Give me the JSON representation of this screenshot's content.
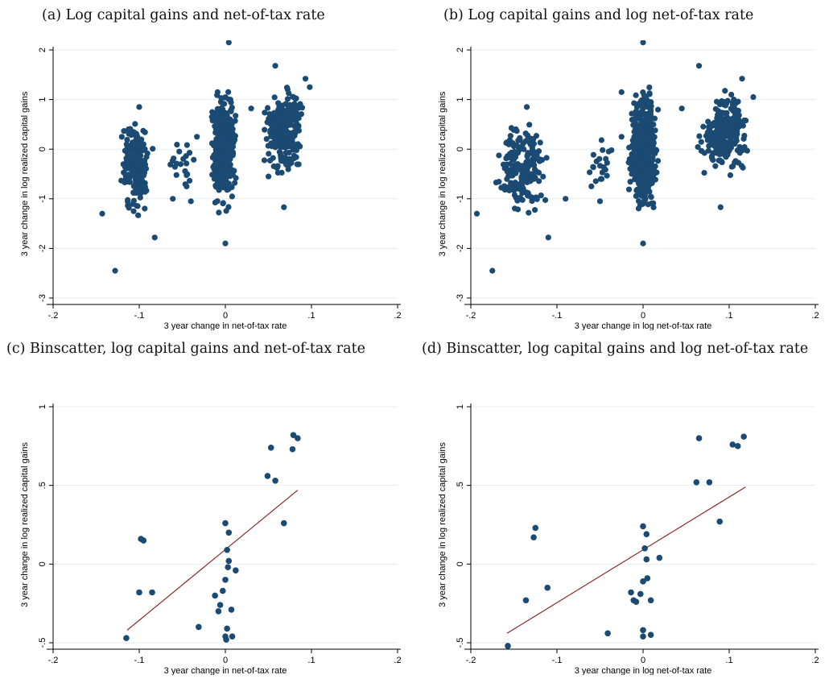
{
  "captions": {
    "a": "(a) Log capital gains and net-of-tax rate",
    "b": "(b) Log capital gains and log net-of-tax rate",
    "c": "(c) Binscatter, log capital gains and net-of-tax rate",
    "d": "(d) Binscatter, log capital gains and log net-of-tax rate"
  },
  "colors": {
    "marker": "#1b4a73",
    "fit_line": "#8b2a2a",
    "grid": "#e6eaee",
    "axis": "#000000"
  },
  "chart_data": [
    {
      "id": "a",
      "type": "scatter",
      "xlabel": "3 year change in net-of-tax rate",
      "ylabel": "3 year change in log realized capital gains",
      "xlim": [
        -0.2,
        0.2
      ],
      "ylim": [
        -3,
        2
      ],
      "xticks": [
        -0.2,
        -0.1,
        0,
        0.1,
        0.2
      ],
      "xtick_labels": [
        "-.2",
        "-.1",
        "0",
        ".1",
        ".2"
      ],
      "yticks": [
        -3,
        -2,
        -1,
        0,
        1,
        2
      ],
      "ytick_labels": [
        "-3",
        "-2",
        "-1",
        "0",
        "1",
        "2"
      ],
      "grid": true,
      "clusters": [
        {
          "xmin": -0.125,
          "xmax": -0.08,
          "ymin": -1.5,
          "ymax": 0.75,
          "n": 200
        },
        {
          "xmin": -0.02,
          "xmax": 0.015,
          "ymin": -1.4,
          "ymax": 1.4,
          "n": 500
        },
        {
          "xmin": 0.04,
          "xmax": 0.095,
          "ymin": -0.7,
          "ymax": 1.4,
          "n": 250
        },
        {
          "xmin": -0.07,
          "xmax": -0.03,
          "ymin": -1.0,
          "ymax": 0.3,
          "n": 20
        }
      ],
      "points": [
        {
          "x": -0.143,
          "y": -1.3
        },
        {
          "x": -0.128,
          "y": -2.45
        },
        {
          "x": -0.061,
          "y": -1.0
        },
        {
          "x": 0.0,
          "y": -1.9
        },
        {
          "x": 0.004,
          "y": 2.15
        },
        {
          "x": 0.068,
          "y": -1.17
        },
        {
          "x": -0.082,
          "y": -1.78
        },
        {
          "x": -0.045,
          "y": -0.75
        },
        {
          "x": 0.093,
          "y": 1.42
        },
        {
          "x": 0.058,
          "y": 1.68
        },
        {
          "x": -0.033,
          "y": 0.25
        },
        {
          "x": -0.1,
          "y": 0.85
        },
        {
          "x": -0.009,
          "y": 1.15
        },
        {
          "x": 0.03,
          "y": 0.82
        },
        {
          "x": 0.098,
          "y": 1.25
        },
        {
          "x": -0.04,
          "y": -1.05
        }
      ]
    },
    {
      "id": "b",
      "type": "scatter",
      "xlabel": "3 year change in log net-of-tax rate",
      "ylabel": "3 year change in log realized capital gains",
      "xlim": [
        -0.2,
        0.2
      ],
      "ylim": [
        -3,
        2
      ],
      "xticks": [
        -0.2,
        -0.1,
        0,
        0.1,
        0.2
      ],
      "xtick_labels": [
        "-.2",
        "-.1",
        "0",
        ".1",
        ".2"
      ],
      "yticks": [
        -3,
        -2,
        -1,
        0,
        1,
        2
      ],
      "ytick_labels": [
        "-3",
        "-2",
        "-1",
        "0",
        "1",
        "2"
      ],
      "grid": true,
      "clusters": [
        {
          "xmin": -0.175,
          "xmax": -0.105,
          "ymin": -1.5,
          "ymax": 0.75,
          "n": 200
        },
        {
          "xmin": -0.02,
          "xmax": 0.02,
          "ymin": -1.4,
          "ymax": 1.4,
          "n": 500
        },
        {
          "xmin": 0.06,
          "xmax": 0.13,
          "ymin": -0.7,
          "ymax": 1.4,
          "n": 250
        },
        {
          "xmin": -0.07,
          "xmax": -0.03,
          "ymin": -1.0,
          "ymax": 0.3,
          "n": 20
        }
      ],
      "points": [
        {
          "x": -0.193,
          "y": -1.3
        },
        {
          "x": -0.175,
          "y": -2.45
        },
        {
          "x": -0.09,
          "y": -1.0
        },
        {
          "x": 0.0,
          "y": -1.9
        },
        {
          "x": 0.0,
          "y": 2.15
        },
        {
          "x": 0.09,
          "y": -1.17
        },
        {
          "x": -0.11,
          "y": -1.78
        },
        {
          "x": -0.06,
          "y": -0.75
        },
        {
          "x": 0.128,
          "y": 1.05
        },
        {
          "x": 0.065,
          "y": 1.68
        },
        {
          "x": -0.025,
          "y": 0.25
        },
        {
          "x": -0.135,
          "y": 0.85
        },
        {
          "x": -0.025,
          "y": 1.15
        },
        {
          "x": 0.045,
          "y": 0.82
        },
        {
          "x": 0.115,
          "y": 1.42
        },
        {
          "x": -0.05,
          "y": -1.05
        }
      ]
    },
    {
      "id": "c",
      "type": "scatter",
      "xlabel": "3 year change in net-of-tax rate",
      "ylabel": "3 year change in log realized capital gains",
      "xlim": [
        -0.2,
        0.2
      ],
      "ylim": [
        -0.5,
        1
      ],
      "xticks": [
        -0.2,
        -0.1,
        0,
        0.1,
        0.2
      ],
      "xtick_labels": [
        "-.2",
        "-.1",
        "0",
        ".1",
        ".2"
      ],
      "yticks": [
        -0.5,
        0,
        0.5,
        1
      ],
      "ytick_labels": [
        "-.5",
        "0",
        ".5",
        "1"
      ],
      "grid": true,
      "fit_line": {
        "x": [
          -0.114,
          0.084
        ],
        "y": [
          -0.42,
          0.47
        ]
      },
      "points": [
        {
          "x": -0.115,
          "y": -0.47
        },
        {
          "x": -0.098,
          "y": 0.16
        },
        {
          "x": -0.095,
          "y": 0.15
        },
        {
          "x": -0.1,
          "y": -0.18
        },
        {
          "x": -0.085,
          "y": -0.18
        },
        {
          "x": -0.031,
          "y": -0.4
        },
        {
          "x": -0.012,
          "y": -0.2
        },
        {
          "x": -0.008,
          "y": -0.3
        },
        {
          "x": -0.006,
          "y": -0.26
        },
        {
          "x": -0.003,
          "y": -0.17
        },
        {
          "x": 0.0,
          "y": 0.26
        },
        {
          "x": 0.0,
          "y": -0.1
        },
        {
          "x": 0.0,
          "y": -0.46
        },
        {
          "x": 0.001,
          "y": -0.48
        },
        {
          "x": 0.002,
          "y": 0.09
        },
        {
          "x": 0.002,
          "y": -0.41
        },
        {
          "x": 0.003,
          "y": -0.02
        },
        {
          "x": 0.004,
          "y": 0.2
        },
        {
          "x": 0.004,
          "y": 0.02
        },
        {
          "x": 0.007,
          "y": -0.29
        },
        {
          "x": 0.008,
          "y": -0.46
        },
        {
          "x": 0.012,
          "y": -0.04
        },
        {
          "x": 0.049,
          "y": 0.56
        },
        {
          "x": 0.053,
          "y": 0.74
        },
        {
          "x": 0.058,
          "y": 0.53
        },
        {
          "x": 0.068,
          "y": 0.26
        },
        {
          "x": 0.078,
          "y": 0.73
        },
        {
          "x": 0.079,
          "y": 0.82
        },
        {
          "x": 0.084,
          "y": 0.8
        }
      ]
    },
    {
      "id": "d",
      "type": "scatter",
      "xlabel": "3 year change in log net-of-tax rate",
      "ylabel": "3 year change in log realized capital gains",
      "xlim": [
        -0.2,
        0.2
      ],
      "ylim": [
        -0.5,
        1
      ],
      "xticks": [
        -0.2,
        -0.1,
        0,
        0.1,
        0.2
      ],
      "xtick_labels": [
        "-.2",
        "-.1",
        "0",
        ".1",
        ".2"
      ],
      "yticks": [
        -0.5,
        0,
        0.5,
        1
      ],
      "ytick_labels": [
        "-.5",
        "0",
        ".5",
        "1"
      ],
      "grid": true,
      "fit_line": {
        "x": [
          -0.158,
          0.119
        ],
        "y": [
          -0.44,
          0.49
        ]
      },
      "points": [
        {
          "x": -0.157,
          "y": -0.52
        },
        {
          "x": -0.125,
          "y": 0.23
        },
        {
          "x": -0.127,
          "y": 0.17
        },
        {
          "x": -0.136,
          "y": -0.23
        },
        {
          "x": -0.111,
          "y": -0.15
        },
        {
          "x": -0.041,
          "y": -0.44
        },
        {
          "x": -0.014,
          "y": -0.18
        },
        {
          "x": -0.011,
          "y": -0.23
        },
        {
          "x": -0.008,
          "y": -0.24
        },
        {
          "x": -0.003,
          "y": -0.19
        },
        {
          "x": 0.0,
          "y": 0.24
        },
        {
          "x": 0.0,
          "y": -0.11
        },
        {
          "x": 0.0,
          "y": -0.42
        },
        {
          "x": 0.0,
          "y": -0.46
        },
        {
          "x": 0.002,
          "y": 0.1
        },
        {
          "x": 0.004,
          "y": 0.19
        },
        {
          "x": 0.004,
          "y": 0.03
        },
        {
          "x": 0.005,
          "y": -0.09
        },
        {
          "x": 0.009,
          "y": -0.23
        },
        {
          "x": 0.009,
          "y": -0.45
        },
        {
          "x": 0.019,
          "y": 0.04
        },
        {
          "x": 0.062,
          "y": 0.52
        },
        {
          "x": 0.065,
          "y": 0.8
        },
        {
          "x": 0.077,
          "y": 0.52
        },
        {
          "x": 0.089,
          "y": 0.27
        },
        {
          "x": 0.104,
          "y": 0.76
        },
        {
          "x": 0.11,
          "y": 0.75
        },
        {
          "x": 0.117,
          "y": 0.81
        }
      ]
    }
  ]
}
